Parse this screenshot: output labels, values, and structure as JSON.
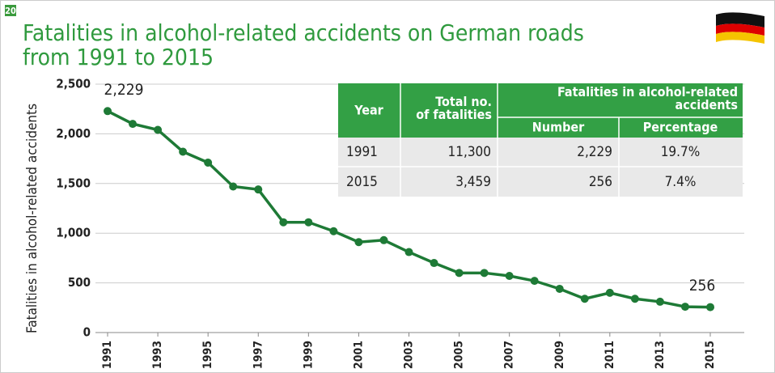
{
  "badge": "20",
  "chart_data": {
    "type": "line",
    "title": "Fatalities in alcohol-related accidents on German roads",
    "subtitle": "from 1991 to 2015",
    "y_label": "Fatalities in alcohol-related accidents",
    "x": [
      1991,
      1992,
      1993,
      1994,
      1995,
      1996,
      1997,
      1998,
      1999,
      2000,
      2001,
      2002,
      2003,
      2004,
      2005,
      2006,
      2007,
      2008,
      2009,
      2010,
      2011,
      2012,
      2013,
      2014,
      2015
    ],
    "xlim": [
      1991,
      2015
    ],
    "xticks": [
      1991,
      1993,
      1995,
      1997,
      1999,
      2001,
      2003,
      2005,
      2007,
      2009,
      2011,
      2013,
      2015
    ],
    "series": [
      {
        "name": "Fatalities",
        "color": "#1e7a36",
        "values": [
          2229,
          2100,
          2040,
          1820,
          1710,
          1470,
          1440,
          1110,
          1110,
          1020,
          910,
          930,
          810,
          700,
          600,
          600,
          570,
          520,
          440,
          340,
          400,
          340,
          310,
          260,
          256
        ],
        "value_labels": [
          "2,229",
          null,
          null,
          null,
          null,
          null,
          null,
          null,
          null,
          null,
          null,
          null,
          null,
          null,
          null,
          null,
          null,
          null,
          null,
          null,
          null,
          null,
          null,
          null,
          "256"
        ]
      }
    ],
    "ylim": [
      0,
      2500
    ],
    "yticks": [
      0,
      500,
      {
        "value": 1000,
        "label": "1,000"
      },
      {
        "value": 1500,
        "label": "1,500"
      },
      {
        "value": 2000,
        "label": "2,000"
      },
      {
        "value": 2500,
        "label": "2,500"
      }
    ],
    "grid": true
  },
  "table": {
    "header": {
      "year": "Year",
      "total": "Total no. of fatalities",
      "group": "Fatalities in alcohol-related accidents",
      "number": "Number",
      "percentage": "Percentage"
    },
    "rows": [
      [
        "1991",
        "11,300",
        "2,229",
        "19.7%"
      ],
      [
        "2015",
        "3,459",
        "256",
        "7.4%"
      ]
    ]
  }
}
